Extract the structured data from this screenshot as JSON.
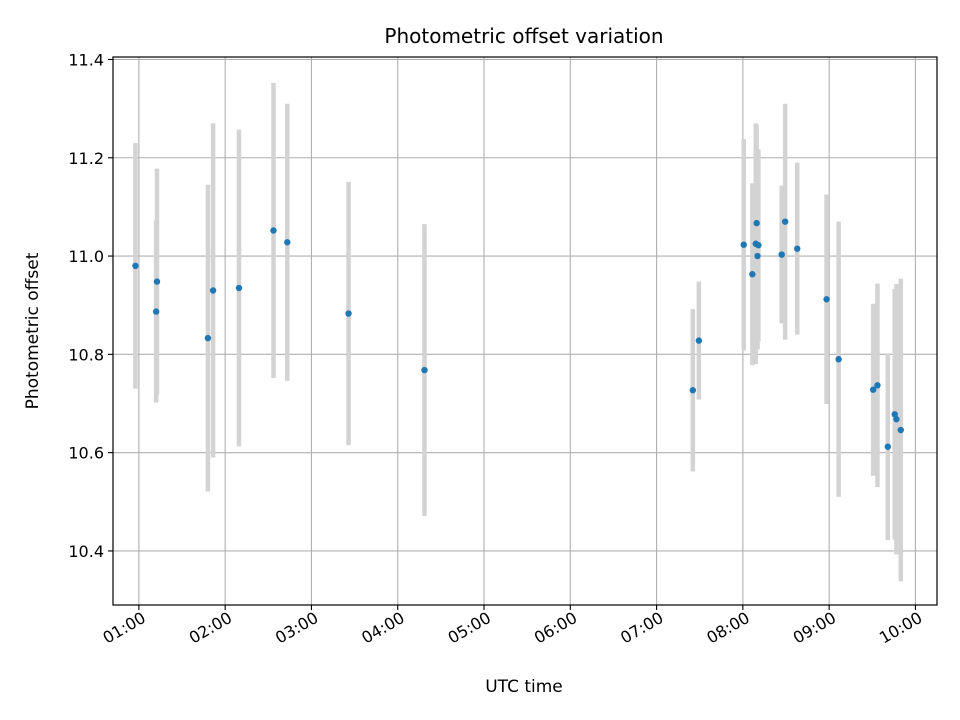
{
  "chart_data": {
    "type": "scatter",
    "title": "Photometric offset variation",
    "xlabel": "UTC time",
    "ylabel": "Photometric offset",
    "x_unit": "hours UTC",
    "xlim": [
      0.7,
      10.25
    ],
    "ylim": [
      10.29,
      11.405
    ],
    "xticks": [
      1,
      2,
      3,
      4,
      5,
      6,
      7,
      8,
      9,
      10
    ],
    "xtick_labels": [
      "01:00",
      "02:00",
      "03:00",
      "04:00",
      "05:00",
      "06:00",
      "07:00",
      "08:00",
      "09:00",
      "10:00"
    ],
    "yticks": [
      10.4,
      10.6,
      10.8,
      11.0,
      11.2,
      11.4
    ],
    "ytick_labels": [
      "10.4",
      "10.6",
      "10.8",
      "11.0",
      "11.2",
      "11.4"
    ],
    "grid": true,
    "colors": {
      "points": "#1f77b4",
      "errorbars": "#d3d3d3",
      "grid": "#b0b0b0",
      "axes": "#000000"
    },
    "series": [
      {
        "name": "Photometric offset",
        "points": [
          {
            "x": 0.96,
            "y": 10.98,
            "yerr": 0.25
          },
          {
            "x": 1.2,
            "y": 10.887,
            "yerr": 0.185
          },
          {
            "x": 1.21,
            "y": 10.948,
            "yerr": 0.23
          },
          {
            "x": 1.8,
            "y": 10.833,
            "yerr": 0.312
          },
          {
            "x": 1.86,
            "y": 10.93,
            "yerr": 0.34
          },
          {
            "x": 2.16,
            "y": 10.935,
            "yerr": 0.322
          },
          {
            "x": 2.56,
            "y": 11.052,
            "yerr": 0.3
          },
          {
            "x": 2.72,
            "y": 11.028,
            "yerr": 0.282
          },
          {
            "x": 3.43,
            "y": 10.883,
            "yerr": 0.268
          },
          {
            "x": 4.31,
            "y": 10.768,
            "yerr": 0.297
          },
          {
            "x": 7.42,
            "y": 10.727,
            "yerr": 0.165
          },
          {
            "x": 7.49,
            "y": 10.828,
            "yerr": 0.12
          },
          {
            "x": 8.01,
            "y": 11.023,
            "yerr": 0.215
          },
          {
            "x": 8.11,
            "y": 10.963,
            "yerr": 0.185
          },
          {
            "x": 8.15,
            "y": 11.025,
            "yerr": 0.245
          },
          {
            "x": 8.16,
            "y": 11.067,
            "yerr": 0.2
          },
          {
            "x": 8.18,
            "y": 11.022,
            "yerr": 0.195
          },
          {
            "x": 8.17,
            "y": 11.0,
            "yerr": 0.19
          },
          {
            "x": 8.45,
            "y": 11.003,
            "yerr": 0.14
          },
          {
            "x": 8.49,
            "y": 11.07,
            "yerr": 0.24
          },
          {
            "x": 8.63,
            "y": 11.015,
            "yerr": 0.175
          },
          {
            "x": 8.97,
            "y": 10.912,
            "yerr": 0.213
          },
          {
            "x": 9.11,
            "y": 10.79,
            "yerr": 0.28
          },
          {
            "x": 9.51,
            "y": 10.728,
            "yerr": 0.175
          },
          {
            "x": 9.56,
            "y": 10.737,
            "yerr": 0.207
          },
          {
            "x": 9.68,
            "y": 10.612,
            "yerr": 0.19
          },
          {
            "x": 9.76,
            "y": 10.678,
            "yerr": 0.255
          },
          {
            "x": 9.78,
            "y": 10.668,
            "yerr": 0.275
          },
          {
            "x": 9.83,
            "y": 10.646,
            "yerr": 0.308
          }
        ]
      }
    ]
  }
}
